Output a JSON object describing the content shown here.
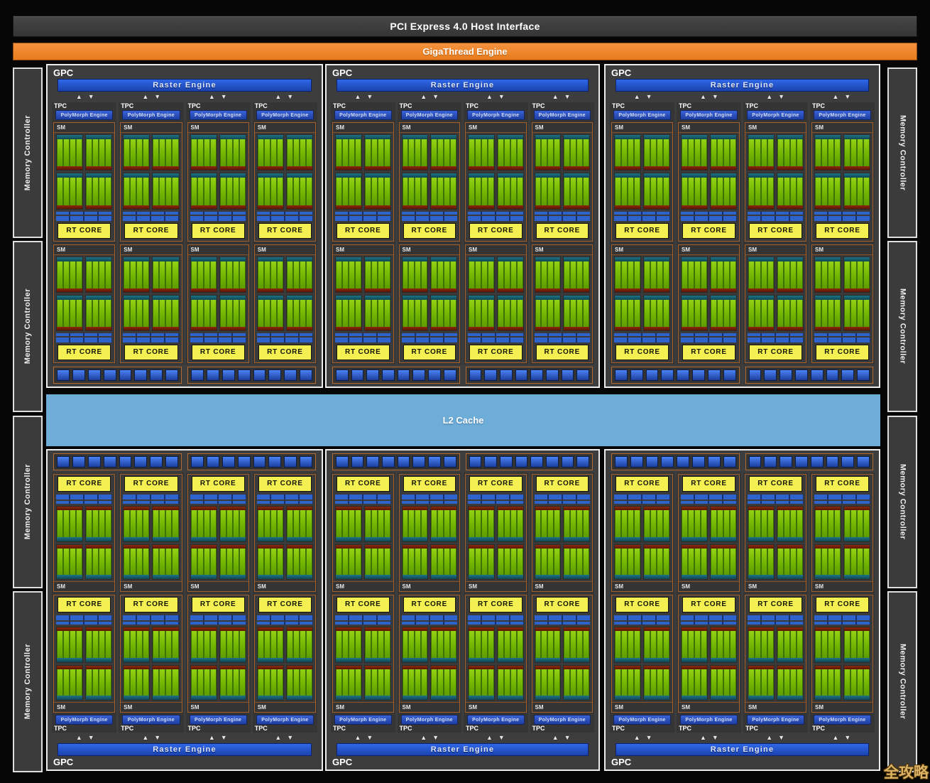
{
  "title_bars": {
    "pci_host_interface": "PCI Express 4.0 Host Interface",
    "gigathread_engine": "GigaThread Engine"
  },
  "blocks": {
    "gpc_label": "GPC",
    "raster_engine": "Raster Engine",
    "tpc_label": "TPC",
    "polymorph_engine": "PolyMorph Engine",
    "sm_label": "SM",
    "rt_core": "RT CORE",
    "l2_cache": "L2 Cache",
    "memory_controller": "Memory Controller"
  },
  "icons": {
    "up_arrow": "▲",
    "down_arrow": "▼"
  },
  "watermark": "全攻略",
  "structure": {
    "gpc_rows": 2,
    "gpcs_per_row": 3,
    "tpcs_per_gpc": 4,
    "sms_per_tpc": 2,
    "core_partitions_per_sm": 4,
    "cores_per_partition": 4,
    "arrow_pairs_per_gpc": 4,
    "tex_unit_boxes_per_gpc": 2,
    "tex_units_per_box": 8,
    "memory_controllers_per_side": 4
  },
  "colors": {
    "gigathread_orange": "#ef8531",
    "raster_blue": "#1d4fc0",
    "polymorph_blue": "#2a52b8",
    "rt_core_yellow": "#f4f052",
    "l2_cache_blue": "#6fadd9",
    "core_green": "#7cc408",
    "teal_strip": "#15616e",
    "red_strip": "#7c2008",
    "tex_unit_blue": "#2a5fd0",
    "panel_gray": "#3d3d3d"
  }
}
